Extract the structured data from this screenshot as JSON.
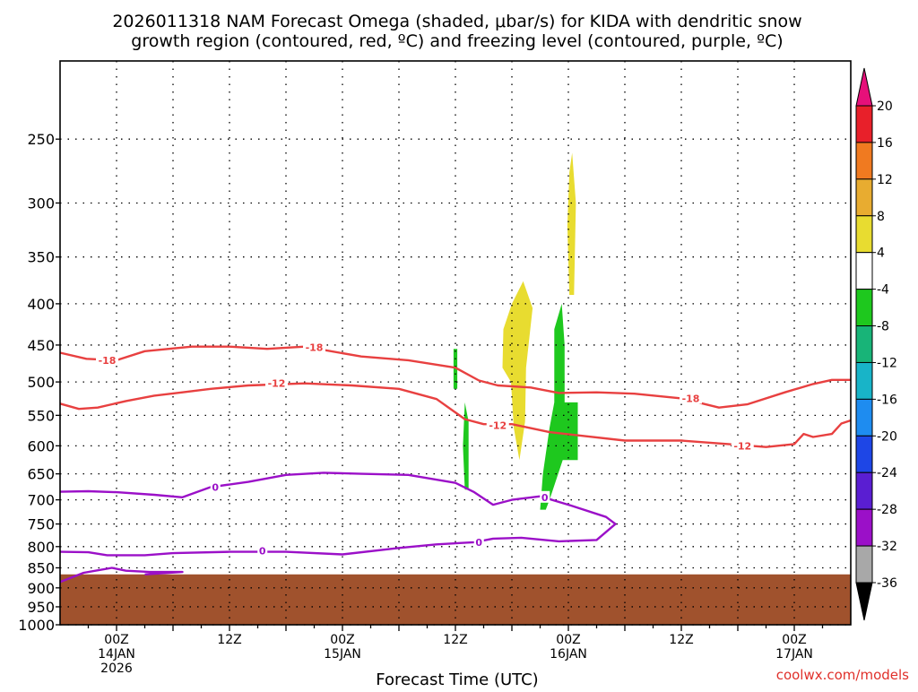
{
  "chart_data": {
    "type": "heatmap",
    "title_line1": "2026011318 NAM Forecast Omega (shaded, μbar/s) for KIDA with dendritic snow",
    "title_line2": "growth region (contoured, red, ºC) and freezing level (contoured, purple, ºC)",
    "xlabel": "Forecast Time (UTC)",
    "credit": "coolwx.com/models",
    "x_range_hours": [
      0,
      84
    ],
    "y_axis": {
      "scale": "log-pressure",
      "range_mb": [
        1000,
        200
      ],
      "ticks": [
        250,
        300,
        350,
        400,
        450,
        500,
        550,
        600,
        650,
        700,
        750,
        800,
        850,
        900,
        950,
        1000
      ],
      "dotted_grid": true
    },
    "x_ticks": [
      {
        "hour": 6,
        "lines": [
          "00Z",
          "14JAN",
          "2026"
        ]
      },
      {
        "hour": 18,
        "lines": [
          "12Z"
        ]
      },
      {
        "hour": 30,
        "lines": [
          "00Z",
          "15JAN"
        ]
      },
      {
        "hour": 42,
        "lines": [
          "12Z"
        ]
      },
      {
        "hour": 54,
        "lines": [
          "00Z",
          "16JAN"
        ]
      },
      {
        "hour": 66,
        "lines": [
          "12Z"
        ]
      },
      {
        "hour": 78,
        "lines": [
          "00Z",
          "17JAN"
        ]
      }
    ],
    "terrain": {
      "color": "#a0522d",
      "surface_mb": 866
    },
    "colorbar": {
      "labels": [
        "20",
        "16",
        "12",
        "8",
        "4",
        "-4",
        "-8",
        "-12",
        "-16",
        "-20",
        "-24",
        "-28",
        "-32",
        "-36"
      ],
      "colors": [
        "#e8202a",
        "#f07a20",
        "#e8ac30",
        "#e8dc30",
        "#ffffff",
        "#1ec81e",
        "#18b478",
        "#18b4c8",
        "#1e8cf0",
        "#1e46e6",
        "#5a1ed2",
        "#9b10c8",
        "#a8a8a8"
      ],
      "top_arrow_color": "#e6107a",
      "bottom_arrow_color": "#000000"
    },
    "omega_regions": [
      {
        "color": "#e8dc30",
        "points": [
          [
            54.4,
            260
          ],
          [
            54.8,
            300
          ],
          [
            54.6,
            390
          ],
          [
            54.1,
            390
          ],
          [
            53.9,
            320
          ],
          [
            54.1,
            275
          ]
        ]
      },
      {
        "color": "#e8dc30",
        "points": [
          [
            48.0,
            400
          ],
          [
            49.2,
            375
          ],
          [
            50.2,
            405
          ],
          [
            49.5,
            480
          ],
          [
            49.4,
            560
          ],
          [
            48.8,
            625
          ],
          [
            48.2,
            570
          ],
          [
            47.9,
            500
          ],
          [
            47.0,
            480
          ],
          [
            47.1,
            430
          ],
          [
            48.0,
            400
          ]
        ]
      },
      {
        "color": "#1ec81e",
        "points": [
          [
            41.8,
            455
          ],
          [
            42.2,
            455
          ],
          [
            42.2,
            510
          ],
          [
            41.8,
            510
          ]
        ]
      },
      {
        "color": "#1ec81e",
        "points": [
          [
            43.0,
            530
          ],
          [
            43.4,
            560
          ],
          [
            43.4,
            680
          ],
          [
            43.0,
            680
          ],
          [
            42.8,
            600
          ]
        ]
      },
      {
        "color": "#1ec81e",
        "points": [
          [
            53.3,
            400
          ],
          [
            53.6,
            450
          ],
          [
            53.6,
            530
          ],
          [
            55.0,
            530
          ],
          [
            55.0,
            625
          ],
          [
            53.4,
            625
          ],
          [
            52.0,
            700
          ],
          [
            51.6,
            720
          ],
          [
            51.0,
            720
          ],
          [
            51.3,
            650
          ],
          [
            52.0,
            570
          ],
          [
            52.5,
            530
          ],
          [
            52.5,
            430
          ]
        ]
      }
    ],
    "contours": [
      {
        "name": "-18",
        "color": "#e84040",
        "points": [
          [
            0,
            460
          ],
          [
            2.8,
            468
          ],
          [
            6.0,
            470
          ],
          [
            9.0,
            458
          ],
          [
            14.0,
            452
          ],
          [
            18.0,
            452
          ],
          [
            22.0,
            455
          ],
          [
            26.0,
            452
          ],
          [
            32.0,
            465
          ],
          [
            37.0,
            470
          ],
          [
            42.0,
            480
          ],
          [
            44.5,
            498
          ],
          [
            46.5,
            505
          ],
          [
            50.0,
            508
          ],
          [
            53.0,
            516
          ],
          [
            57.0,
            515
          ],
          [
            61.0,
            517
          ],
          [
            66.0,
            524
          ],
          [
            70.0,
            538
          ],
          [
            73.0,
            533
          ],
          [
            77.0,
            515
          ],
          [
            80.0,
            503
          ],
          [
            82.0,
            497
          ],
          [
            84.0,
            497
          ]
        ]
      },
      {
        "name": "-12",
        "color": "#e84040",
        "points": [
          [
            0,
            532
          ],
          [
            2.0,
            540
          ],
          [
            4.0,
            538
          ],
          [
            7.0,
            528
          ],
          [
            10.0,
            520
          ],
          [
            13.0,
            515
          ],
          [
            16.0,
            510
          ],
          [
            20.0,
            505
          ],
          [
            26.0,
            502
          ],
          [
            31.0,
            505
          ],
          [
            36.0,
            510
          ],
          [
            40.0,
            525
          ],
          [
            43.0,
            556
          ],
          [
            45.0,
            564
          ],
          [
            48.0,
            564
          ],
          [
            52.0,
            577
          ],
          [
            56.0,
            584
          ],
          [
            60.0,
            591
          ],
          [
            66.0,
            591
          ],
          [
            71.0,
            597
          ],
          [
            75.0,
            602
          ],
          [
            78.0,
            597
          ],
          [
            79.0,
            580
          ],
          [
            80.0,
            585
          ],
          [
            82.0,
            580
          ],
          [
            83.0,
            563
          ],
          [
            84.0,
            558
          ]
        ]
      },
      {
        "name": "0",
        "color": "#9b10c8",
        "points": [
          [
            0,
            684
          ],
          [
            3.0,
            683
          ],
          [
            6.0,
            685
          ],
          [
            10.0,
            690
          ],
          [
            13.0,
            695
          ],
          [
            16.0,
            675
          ],
          [
            20.0,
            665
          ],
          [
            24.0,
            652
          ],
          [
            28.0,
            648
          ],
          [
            32.0,
            650
          ],
          [
            37.0,
            652
          ],
          [
            42.0,
            667
          ],
          [
            44.0,
            685
          ],
          [
            46.0,
            710
          ],
          [
            48.0,
            700
          ],
          [
            51.0,
            693
          ],
          [
            54.0,
            710
          ],
          [
            58.0,
            735
          ],
          [
            59.0,
            750
          ],
          [
            57.0,
            785
          ],
          [
            53.0,
            788
          ],
          [
            49.0,
            780
          ],
          [
            46.0,
            782
          ],
          [
            44.0,
            790
          ],
          [
            40.0,
            795
          ],
          [
            36.0,
            803
          ],
          [
            30.0,
            818
          ],
          [
            24.0,
            812
          ],
          [
            18.0,
            812
          ],
          [
            12.0,
            815
          ],
          [
            9.0,
            820
          ],
          [
            5.0,
            820
          ],
          [
            3.0,
            813
          ],
          [
            0,
            812
          ]
        ]
      },
      {
        "name": "0b",
        "color": "#9b10c8",
        "points": [
          [
            0,
            885
          ],
          [
            2.5,
            862
          ],
          [
            5.5,
            850
          ],
          [
            7.0,
            857
          ],
          [
            9.5,
            860
          ],
          [
            13.0,
            860
          ],
          [
            9.0,
            866
          ]
        ]
      }
    ],
    "contour_labels": [
      {
        "text": "-18",
        "hour": 5.0,
        "mb": 470,
        "color": "#e84040"
      },
      {
        "text": "-18",
        "hour": 27.0,
        "mb": 453,
        "color": "#e84040"
      },
      {
        "text": "-18",
        "hour": 67.0,
        "mb": 524,
        "color": "#e84040"
      },
      {
        "text": "-12",
        "hour": 23.0,
        "mb": 502,
        "color": "#e84040"
      },
      {
        "text": "-12",
        "hour": 46.5,
        "mb": 566,
        "color": "#e84040"
      },
      {
        "text": "-12",
        "hour": 72.5,
        "mb": 600,
        "color": "#e84040"
      },
      {
        "text": "0",
        "hour": 16.5,
        "mb": 675,
        "color": "#9b10c8"
      },
      {
        "text": "0",
        "hour": 51.5,
        "mb": 695,
        "color": "#9b10c8"
      },
      {
        "text": "0",
        "hour": 21.5,
        "mb": 810,
        "color": "#9b10c8"
      },
      {
        "text": "0",
        "hour": 44.5,
        "mb": 790,
        "color": "#9b10c8"
      }
    ]
  }
}
